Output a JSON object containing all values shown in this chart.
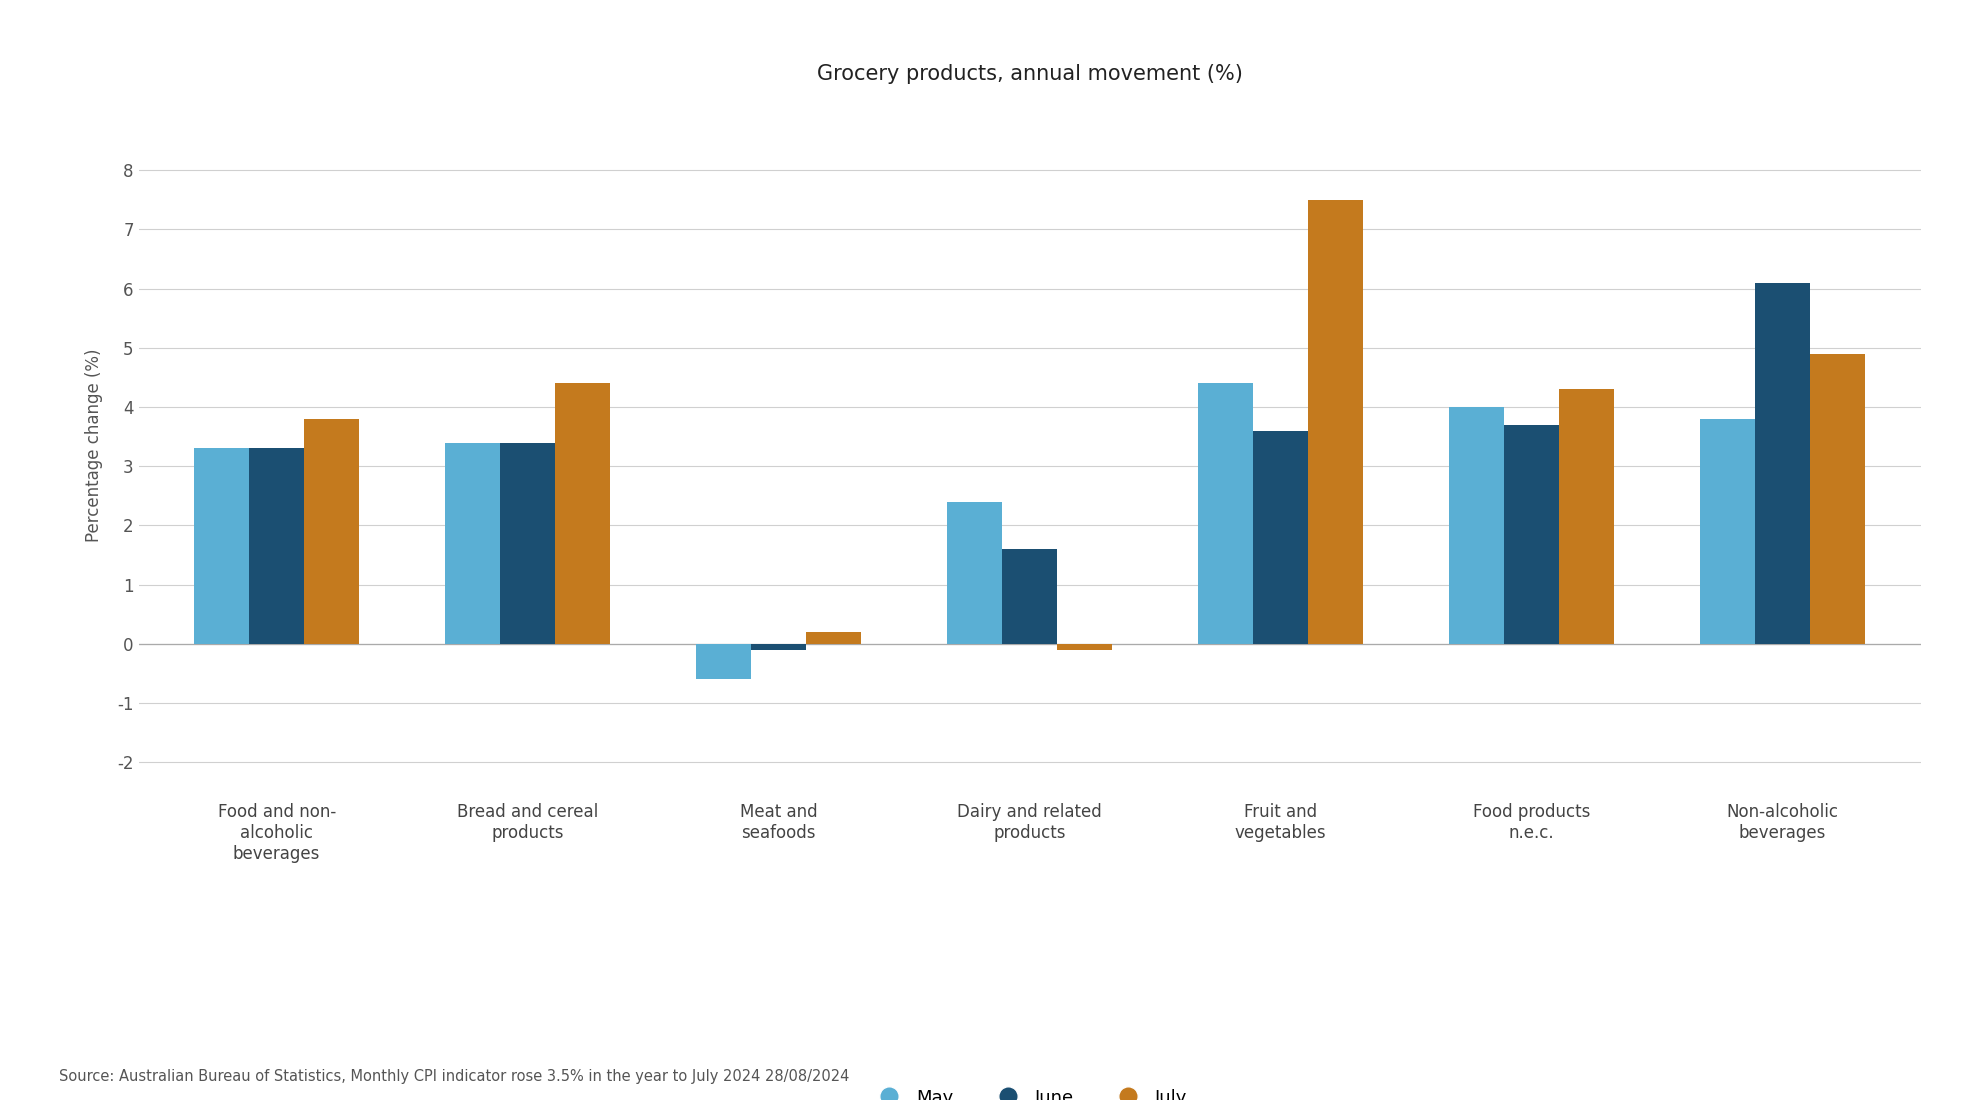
{
  "title": "Grocery products, annual movement (%)",
  "ylabel": "Percentage change (%)",
  "source": "Source: Australian Bureau of Statistics, Monthly CPI indicator rose 3.5% in the year to July 2024 28/08/2024",
  "categories": [
    "Food and non-\nalcoholic\nbeverages",
    "Bread and cereal\nproducts",
    "Meat and\nseafoods",
    "Dairy and related\nproducts",
    "Fruit and\nvegetables",
    "Food products\nn.e.c.",
    "Non-alcoholic\nbeverages"
  ],
  "series": {
    "May": [
      3.3,
      3.4,
      -0.6,
      2.4,
      4.4,
      4.0,
      3.8
    ],
    "June": [
      3.3,
      3.4,
      -0.1,
      1.6,
      3.6,
      3.7,
      6.1
    ],
    "July": [
      3.8,
      4.4,
      0.2,
      -0.1,
      7.5,
      4.3,
      4.9
    ]
  },
  "colors": {
    "May": "#5aafd4",
    "June": "#1b4f72",
    "July": "#c47a1e"
  },
  "ylim": [
    -2.5,
    9.2
  ],
  "yticks": [
    -2,
    -1,
    0,
    1,
    2,
    3,
    4,
    5,
    6,
    7,
    8
  ],
  "legend_labels": [
    "May",
    "June",
    "July"
  ],
  "background_color": "#ffffff",
  "grid_color": "#d0d0d0",
  "bar_width": 0.22,
  "title_fontsize": 15,
  "axis_label_fontsize": 12,
  "tick_fontsize": 12,
  "legend_fontsize": 13,
  "source_fontsize": 10.5
}
